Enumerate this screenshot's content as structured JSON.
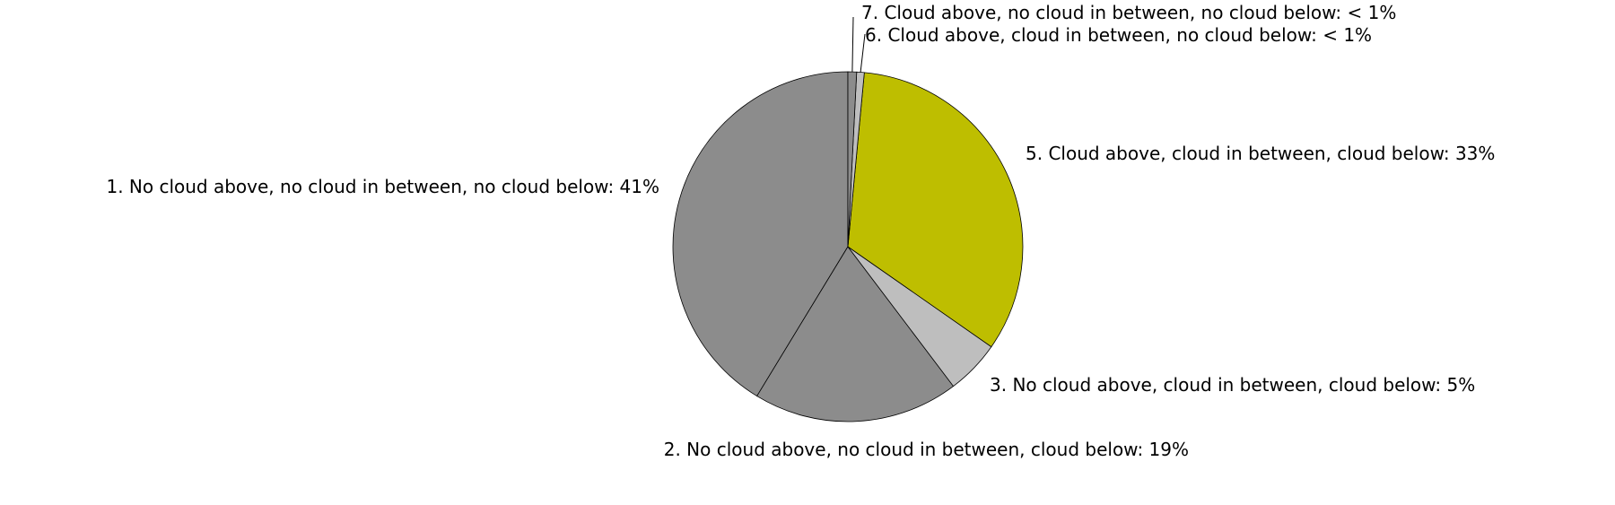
{
  "chart_data": {
    "type": "pie",
    "start_angle_deg": 90,
    "direction": "counterclockwise",
    "slices": [
      {
        "label": "1. No cloud above, no cloud in between, no cloud below: 41%",
        "value": 41.3,
        "color": "#8c8c8c"
      },
      {
        "label": "2. No cloud above, no cloud in between, cloud below: 19%",
        "value": 19.0,
        "color": "#8c8c8c"
      },
      {
        "label": "3. No cloud above, cloud in between, cloud below: 5%",
        "value": 5.0,
        "color": "#bebebe"
      },
      {
        "label": "5. Cloud above, cloud in between, cloud below: 33%",
        "value": 33.2,
        "color": "#bebe00"
      },
      {
        "label": "6. Cloud above, cloud in between, no cloud below: < 1%",
        "value": 0.7,
        "color": "#bebebe"
      },
      {
        "label": "7. Cloud above, no cloud in between, no cloud below: < 1%",
        "value": 0.8,
        "color": "#8c8c8c"
      }
    ]
  }
}
